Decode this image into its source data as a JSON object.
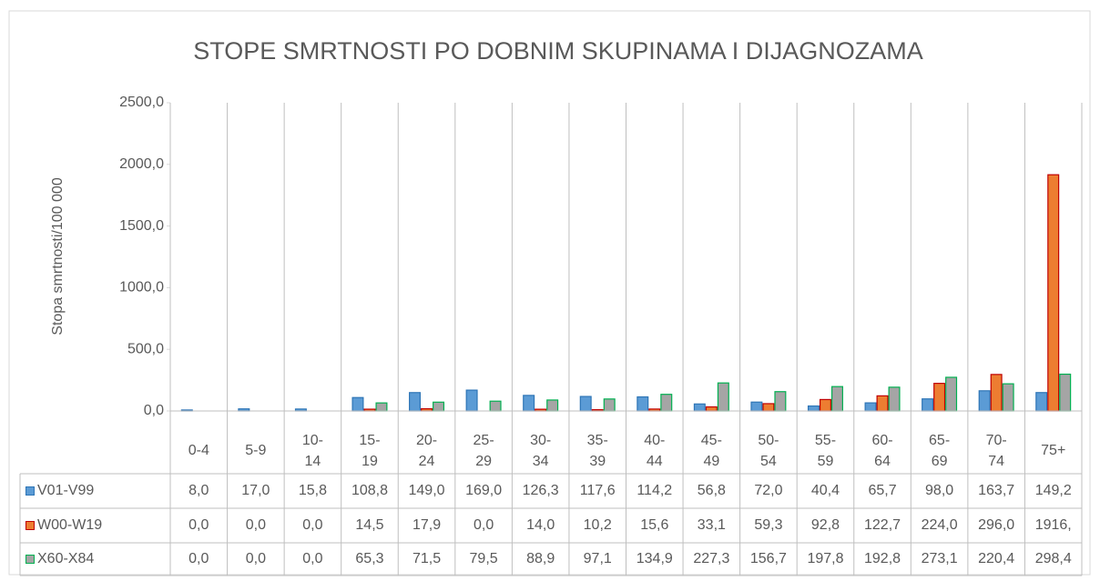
{
  "chart_data": {
    "type": "bar",
    "title": "STOPE SMRTNOSTI PO DOBNIM SKUPINAMA I DIJAGNOZAMA",
    "y_label": "Stopa smrtnosti/100 000",
    "categories": [
      "0-4",
      "5-9",
      "10-14",
      "15-19",
      "20-24",
      "25-29",
      "30-34",
      "35-39",
      "40-44",
      "45-49",
      "50-54",
      "55-59",
      "60-64",
      "65-69",
      "70-74",
      "75+"
    ],
    "series": [
      {
        "name": "V01-V99",
        "color": "#5b9bd5",
        "edge": "#2e75b6",
        "values": [
          8.0,
          17.0,
          15.8,
          108.8,
          149.0,
          169.0,
          126.3,
          117.6,
          114.2,
          56.8,
          72.0,
          40.4,
          65.7,
          98.0,
          163.7,
          149.2
        ],
        "value_labels": [
          "8,0",
          "17,0",
          "15,8",
          "108,8",
          "149,0",
          "169,0",
          "126,3",
          "117,6",
          "114,2",
          "56,8",
          "72,0",
          "40,4",
          "65,7",
          "98,0",
          "163,7",
          "149,2"
        ]
      },
      {
        "name": "W00-W19",
        "color": "#ed7d31",
        "edge": "#c00000",
        "values": [
          0.0,
          0.0,
          0.0,
          14.5,
          17.9,
          0.0,
          14.0,
          10.2,
          15.6,
          33.1,
          59.3,
          92.8,
          122.7,
          224.0,
          296.0,
          1916
        ],
        "value_labels": [
          "0,0",
          "0,0",
          "0,0",
          "14,5",
          "17,9",
          "0,0",
          "14,0",
          "10,2",
          "15,6",
          "33,1",
          "59,3",
          "92,8",
          "122,7",
          "224,0",
          "296,0",
          "1916,"
        ]
      },
      {
        "name": "X60-X84",
        "color": "#a5a5a5",
        "edge": "#00b050",
        "values": [
          0.0,
          0.0,
          0.0,
          65.3,
          71.5,
          79.5,
          88.9,
          97.1,
          134.9,
          227.3,
          156.7,
          197.8,
          192.8,
          273.1,
          220.4,
          298.4
        ],
        "value_labels": [
          "0,0",
          "0,0",
          "0,0",
          "65,3",
          "71,5",
          "79,5",
          "88,9",
          "97,1",
          "134,9",
          "227,3",
          "156,7",
          "197,8",
          "192,8",
          "273,1",
          "220,4",
          "298,4"
        ]
      }
    ],
    "ylim": [
      0,
      2500
    ],
    "yticks": [
      {
        "value": 0,
        "label": "0,0"
      },
      {
        "value": 500,
        "label": "500,0"
      },
      {
        "value": 1000,
        "label": "1000,0"
      },
      {
        "value": 1500,
        "label": "1500,0"
      },
      {
        "value": 2000,
        "label": "2000,0"
      },
      {
        "value": 2500,
        "label": "2500,0"
      }
    ],
    "grid": false
  }
}
